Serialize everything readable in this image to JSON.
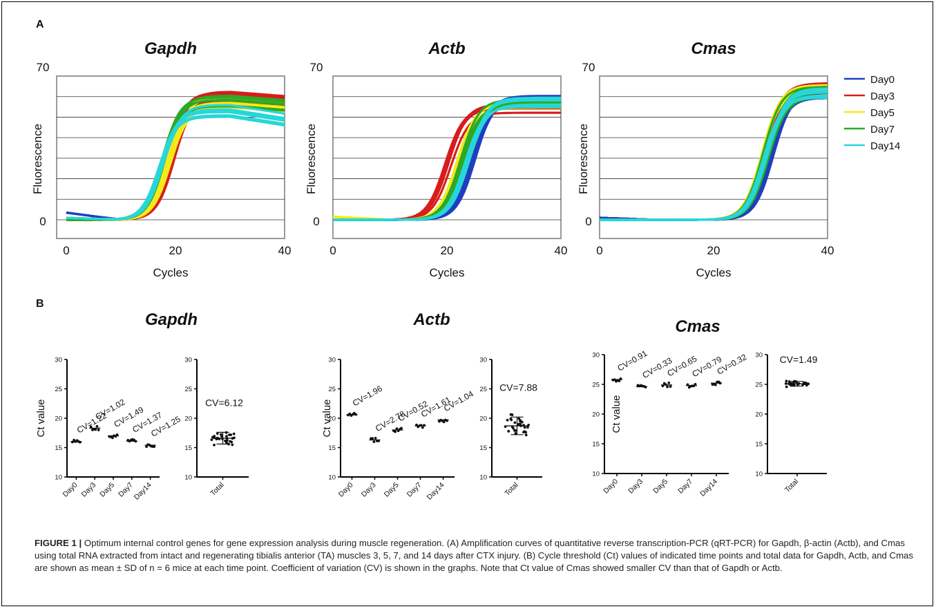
{
  "panel_a": {
    "label": "A",
    "x_label": "Cycles",
    "y_label": "Fluorescence",
    "y_ticks": [
      "70",
      "0"
    ],
    "legend": [
      {
        "name": "Day0",
        "color": "#1f3fbf"
      },
      {
        "name": "Day3",
        "color": "#d81c1c"
      },
      {
        "name": "Day5",
        "color": "#f2ea1a"
      },
      {
        "name": "Day7",
        "color": "#2ea824"
      },
      {
        "name": "Day14",
        "color": "#28d6d8"
      }
    ]
  },
  "panel_b": {
    "label": "B",
    "y_label": "Ct value",
    "total_label": "Total"
  },
  "caption": {
    "figure_label": "FIGURE 1 |",
    "text": " Optimum internal control genes for gene expression analysis during muscle regeneration. (A) Amplification curves of quantitative reverse transcription-PCR (qRT-PCR) for Gapdh, β-actin (Actb), and Cmas using total RNA extracted from intact and regenerating tibialis anterior (TA) muscles 3, 5, 7, and 14 days after CTX injury. (B) Cycle threshold (Ct) values of indicated time points and total data for Gapdh, Actb, and Cmas are shown as mean ± SD of n = 6 mice at each time point. Coefficient of variation (CV) is shown in the graphs. Note that Ct value of Cmas showed smaller CV than that of Gapdh or Actb."
  },
  "chart_data": [
    {
      "type": "line",
      "title": "Gapdh",
      "xlabel": "Cycles",
      "ylabel": "Fluorescence",
      "xlim": [
        0,
        40
      ],
      "ylim": [
        0,
        70
      ],
      "x_ticks": [
        "0",
        "20",
        "40"
      ],
      "series": [
        {
          "name": "Day0",
          "ct": 18.5,
          "plateau": 57,
          "base": 3.5
        },
        {
          "name": "Day3",
          "ct": 19.2,
          "plateau": 60,
          "base": 0
        },
        {
          "name": "Day5",
          "ct": 18.6,
          "plateau": 57,
          "base": 0
        },
        {
          "name": "Day7",
          "ct": 18.0,
          "plateau": 58,
          "base": 0
        },
        {
          "name": "Day14",
          "ct": 17.4,
          "plateau": 53,
          "base": 1
        }
      ]
    },
    {
      "type": "line",
      "title": "Actb",
      "xlabel": "Cycles",
      "ylabel": "",
      "xlim": [
        0,
        40
      ],
      "ylim": [
        0,
        70
      ],
      "x_ticks": [
        "0",
        "20",
        "40"
      ],
      "series": [
        {
          "name": "Day0",
          "ct": 24.5,
          "plateau": 58,
          "base": 0
        },
        {
          "name": "Day3",
          "ct": 20.2,
          "plateau": 55,
          "base": 0
        },
        {
          "name": "Day5",
          "ct": 22.0,
          "plateau": 55,
          "base": 1.5
        },
        {
          "name": "Day7",
          "ct": 22.8,
          "plateau": 56,
          "base": 0
        },
        {
          "name": "Day14",
          "ct": 23.5,
          "plateau": 57,
          "base": 0
        }
      ]
    },
    {
      "type": "line",
      "title": "Cmas",
      "xlabel": "Cycles",
      "ylabel": "",
      "xlim": [
        0,
        40
      ],
      "ylim": [
        0,
        70
      ],
      "x_ticks": [
        "0",
        "20",
        "40"
      ],
      "series": [
        {
          "name": "Day0",
          "ct": 30.0,
          "plateau": 60,
          "base": 1
        },
        {
          "name": "Day3",
          "ct": 28.8,
          "plateau": 64,
          "base": 0
        },
        {
          "name": "Day5",
          "ct": 28.9,
          "plateau": 63,
          "base": 0
        },
        {
          "name": "Day7",
          "ct": 29.1,
          "plateau": 62,
          "base": 0
        },
        {
          "name": "Day14",
          "ct": 29.3,
          "plateau": 61,
          "base": 0
        }
      ]
    },
    {
      "type": "scatter",
      "title": "Gapdh",
      "ylabel": "Ct value",
      "ylim": [
        10,
        30
      ],
      "y_ticks": [
        10,
        15,
        20,
        25,
        30
      ],
      "categories": [
        "Day0",
        "Day3",
        "Day5",
        "Day7",
        "Day14"
      ],
      "means": [
        16.0,
        18.3,
        17.0,
        16.1,
        15.4
      ],
      "cv_labels": [
        "CV=1.22",
        "CV=1.02",
        "CV=1.49",
        "CV=1.37",
        "CV=1.25"
      ],
      "total": {
        "mean": 16.6,
        "sd": 1.0,
        "cv_label": "CV=6.12"
      }
    },
    {
      "type": "scatter",
      "title": "Actb",
      "ylabel": "Ct value",
      "ylim": [
        10,
        30
      ],
      "y_ticks": [
        10,
        15,
        20,
        25,
        30
      ],
      "categories": [
        "Day0",
        "Day3",
        "Day5",
        "Day7",
        "Day14"
      ],
      "means": [
        20.6,
        16.3,
        18.0,
        18.7,
        19.7
      ],
      "cv_labels": [
        "CV=1.96",
        "CV=2.78",
        "CV=0.52",
        "CV=1.61",
        "CV=1.04"
      ],
      "total": {
        "mean": 18.7,
        "sd": 1.5,
        "cv_label": "CV=7.88"
      }
    },
    {
      "type": "scatter",
      "title": "Cmas",
      "ylabel": "Ct value",
      "ylim": [
        10,
        30
      ],
      "y_ticks": [
        10,
        15,
        20,
        25,
        30
      ],
      "categories": [
        "Day0",
        "Day3",
        "Day5",
        "Day7",
        "Day14"
      ],
      "means": [
        25.8,
        24.6,
        24.9,
        24.8,
        25.2
      ],
      "cv_labels": [
        "CV=0.91",
        "CV=0.33",
        "CV=0.65",
        "CV=0.79",
        "CV=0.32"
      ],
      "total": {
        "mean": 25.1,
        "sd": 0.4,
        "cv_label": "CV=1.49"
      }
    }
  ]
}
